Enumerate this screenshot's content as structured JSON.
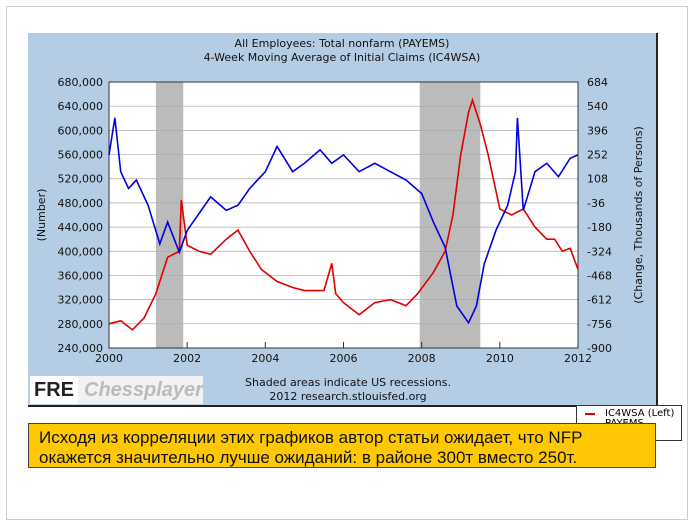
{
  "chart_data": {
    "type": "line",
    "title": [
      "All Employees: Total nonfarm (PAYEMS)",
      "4-Week Moving Average of Initial Claims (IC4WSA)"
    ],
    "ylabel_left": "(Number)",
    "ylabel_right": "(Change, Thousands of Persons)",
    "xlim": [
      2000,
      2012
    ],
    "ylim_left": [
      240000,
      680000
    ],
    "ylim_right": [
      -900,
      684
    ],
    "xticks": [
      "2000",
      "2002",
      "2004",
      "2006",
      "2008",
      "2010",
      "2012"
    ],
    "yticks_left": [
      "240,000",
      "280,000",
      "320,000",
      "360,000",
      "400,000",
      "440,000",
      "480,000",
      "520,000",
      "560,000",
      "600,000",
      "640,000",
      "680,000"
    ],
    "yticks_right": [
      "-900",
      "-756",
      "-612",
      "-468",
      "-324",
      "-180",
      "-36",
      "108",
      "252",
      "396",
      "540",
      "684"
    ],
    "recessions": [
      [
        2001.2,
        2001.9
      ],
      [
        2007.95,
        2009.5
      ]
    ],
    "series": [
      {
        "name": "IC4WSA (Left)",
        "color": "#e00000",
        "axis": "left",
        "x": [
          2000,
          2000.3,
          2000.6,
          2000.9,
          2001.2,
          2001.5,
          2001.8,
          2001.85,
          2002,
          2002.3,
          2002.6,
          2003,
          2003.3,
          2003.6,
          2003.9,
          2004.3,
          2004.7,
          2005,
          2005.5,
          2005.7,
          2005.8,
          2006,
          2006.4,
          2006.8,
          2007.2,
          2007.6,
          2007.9,
          2008.3,
          2008.6,
          2008.8,
          2009,
          2009.2,
          2009.3,
          2009.5,
          2009.7,
          2010,
          2010.3,
          2010.6,
          2010.9,
          2011.2,
          2011.4,
          2011.6,
          2011.8,
          2012
        ],
        "values": [
          280000,
          285000,
          270000,
          290000,
          330000,
          390000,
          400000,
          485000,
          410000,
          400000,
          395000,
          420000,
          435000,
          400000,
          370000,
          350000,
          340000,
          335000,
          335000,
          380000,
          330000,
          315000,
          295000,
          315000,
          320000,
          310000,
          330000,
          365000,
          400000,
          460000,
          560000,
          630000,
          650000,
          610000,
          560000,
          470000,
          460000,
          470000,
          440000,
          420000,
          420000,
          400000,
          405000,
          370000
        ]
      },
      {
        "name": "PAYEMS (Right)",
        "color": "#0000e0",
        "axis": "right",
        "x": [
          2000,
          2000.15,
          2000.3,
          2000.5,
          2000.7,
          2001,
          2001.3,
          2001.5,
          2001.8,
          2002,
          2002.3,
          2002.6,
          2003,
          2003.3,
          2003.6,
          2004,
          2004.3,
          2004.7,
          2005,
          2005.4,
          2005.7,
          2006,
          2006.4,
          2006.8,
          2007.2,
          2007.6,
          2008,
          2008.3,
          2008.6,
          2008.9,
          2009.2,
          2009.4,
          2009.6,
          2009.9,
          2010.2,
          2010.4,
          2010.45,
          2010.6,
          2010.9,
          2011.2,
          2011.5,
          2011.8,
          2012
        ],
        "values": [
          250,
          470,
          150,
          50,
          100,
          -50,
          -280,
          -150,
          -330,
          -200,
          -100,
          0,
          -80,
          -50,
          50,
          150,
          300,
          150,
          200,
          280,
          200,
          250,
          150,
          200,
          150,
          100,
          20,
          -150,
          -300,
          -650,
          -750,
          -650,
          -400,
          -200,
          -50,
          150,
          470,
          -80,
          150,
          200,
          120,
          230,
          250
        ]
      }
    ]
  },
  "footer": {
    "recession_note": "Shaded areas indicate US recessions.",
    "source": "2012 research.stlouisfed.org"
  },
  "logo": {
    "fre": "FRE",
    "overlay": "Chessplayer"
  },
  "note": "Исходя из корреляции этих графиков автор статьи ожидает, что NFP окажется значительно лучше ожиданий: в районе 300т вместо 250т."
}
